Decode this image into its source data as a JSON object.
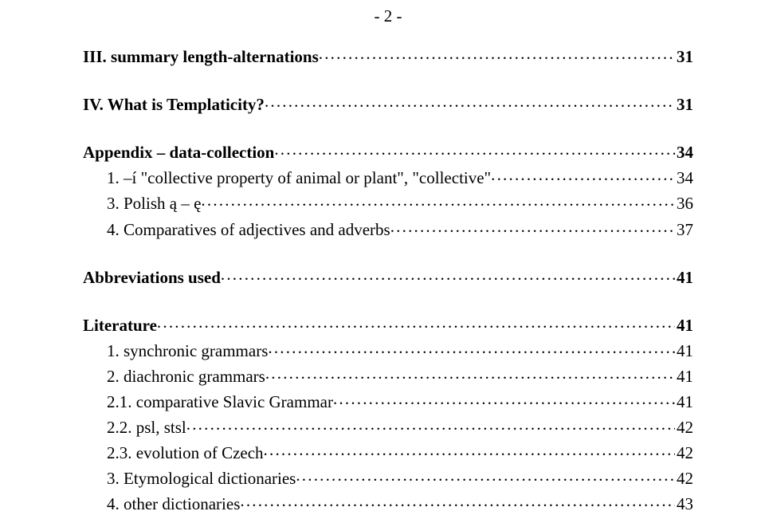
{
  "page_header": "- 2 -",
  "entries": [
    {
      "label": "III. summary length-alternations",
      "page": "31",
      "bold": true,
      "indent": 0,
      "gap_after": "big"
    },
    {
      "label": "IV. What is Templaticity?",
      "page": "31",
      "bold": true,
      "indent": 0,
      "gap_after": "big"
    },
    {
      "label": "Appendix – data-collection",
      "page": "34",
      "bold": true,
      "indent": 0,
      "gap_after": "none"
    },
    {
      "label": "1. –í \"collective property of animal or plant\", \"collective\"",
      "page": "34",
      "bold": false,
      "indent": 1,
      "gap_after": "none"
    },
    {
      "label": "3. Polish ą – ę",
      "page": "36",
      "bold": false,
      "indent": 1,
      "gap_after": "none"
    },
    {
      "label": "4. Comparatives of adjectives and adverbs",
      "page": "37",
      "bold": false,
      "indent": 1,
      "gap_after": "big"
    },
    {
      "label": "Abbreviations used",
      "page": "41",
      "bold": true,
      "indent": 0,
      "gap_after": "big"
    },
    {
      "label": "Literature",
      "page": "41",
      "bold": true,
      "indent": 0,
      "gap_after": "none"
    },
    {
      "label": "1. synchronic grammars",
      "page": "41",
      "bold": false,
      "indent": 1,
      "gap_after": "none"
    },
    {
      "label": "2. diachronic grammars",
      "page": "41",
      "bold": false,
      "indent": 1,
      "gap_after": "none"
    },
    {
      "label": "2.1. comparative Slavic Grammar",
      "page": "41",
      "bold": false,
      "indent": 1,
      "gap_after": "none"
    },
    {
      "label": "2.2. psl, stsl",
      "page": "42",
      "bold": false,
      "indent": 1,
      "gap_after": "none"
    },
    {
      "label": "2.3. evolution of Czech",
      "page": "42",
      "bold": false,
      "indent": 1,
      "gap_after": "none"
    },
    {
      "label": "3. Etymological dictionaries",
      "page": "42",
      "bold": false,
      "indent": 1,
      "gap_after": "none"
    },
    {
      "label": "4. other dictionaries",
      "page": "43",
      "bold": false,
      "indent": 1,
      "gap_after": "none"
    }
  ]
}
